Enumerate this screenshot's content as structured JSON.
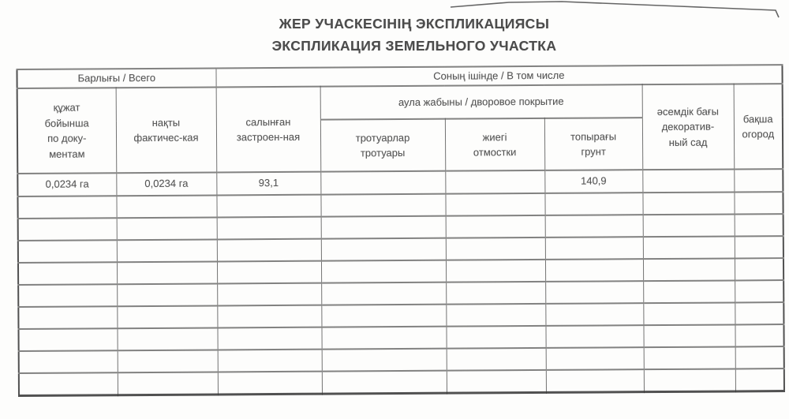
{
  "colors": {
    "page_bg": "#fdfdfc",
    "ink": "#4f4f4f",
    "table_line": "#5a5a5a"
  },
  "title": {
    "line1": "ЖЕР УЧАСКЕСІНІҢ ЭКСПЛИКАЦИЯСЫ",
    "line2": "ЭКСПЛИКАЦИЯ ЗЕМЕЛЬНОГО УЧАСТКА"
  },
  "table": {
    "group_headers": {
      "total": "Барлығы / Всего",
      "including": "Соның ішінде / В том числе",
      "yard_cover": "аула жабыны / дворовое покрытие"
    },
    "col_headers": {
      "by_document": "құжат\nбойынша\nпо доку-\nментам",
      "actual": "нақты\nфактичес-кая",
      "built_up": "салынған\nзастроен-ная",
      "sidewalks": "тротуарлар\nтротуары",
      "curb": "жиегі\nотмостки",
      "soil": "топырағы\nгрунт",
      "decorative_garden": "әсемдік бағы\nдекоратив-\nный сад",
      "vegetable_garden": "бақша\nогород"
    },
    "rows": [
      [
        "0,0234 га",
        "0,0234 га",
        "93,1",
        "",
        "",
        "140,9",
        "",
        ""
      ],
      [
        "",
        "",
        "",
        "",
        "",
        "",
        "",
        ""
      ],
      [
        "",
        "",
        "",
        "",
        "",
        "",
        "",
        ""
      ],
      [
        "",
        "",
        "",
        "",
        "",
        "",
        "",
        ""
      ],
      [
        "",
        "",
        "",
        "",
        "",
        "",
        "",
        ""
      ],
      [
        "",
        "",
        "",
        "",
        "",
        "",
        "",
        ""
      ],
      [
        "",
        "",
        "",
        "",
        "",
        "",
        "",
        ""
      ],
      [
        "",
        "",
        "",
        "",
        "",
        "",
        "",
        ""
      ],
      [
        "",
        "",
        "",
        "",
        "",
        "",
        "",
        ""
      ],
      [
        "",
        "",
        "",
        "",
        "",
        "",
        "",
        ""
      ]
    ]
  }
}
